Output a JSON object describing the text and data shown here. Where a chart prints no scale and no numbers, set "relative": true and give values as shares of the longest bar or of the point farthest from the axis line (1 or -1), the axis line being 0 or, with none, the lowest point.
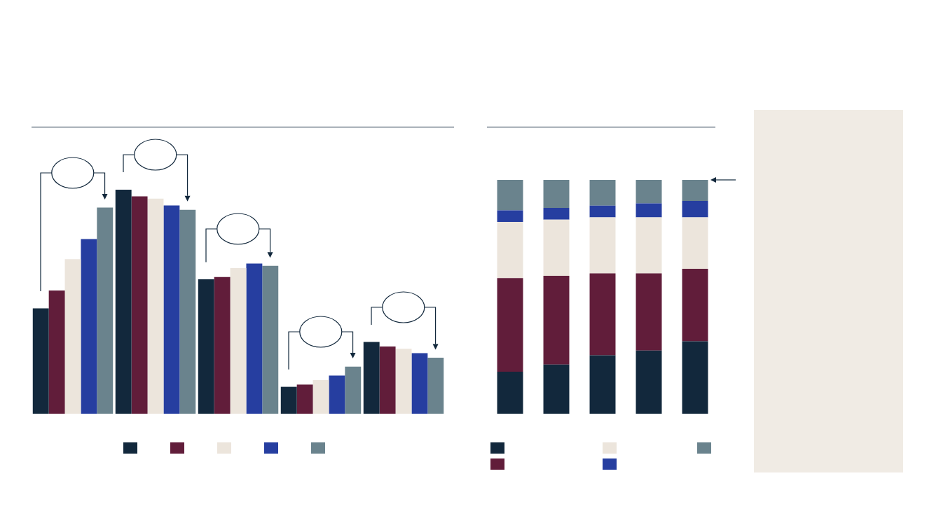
{
  "chart_data": [
    {
      "type": "bar",
      "relative": true,
      "categories": [
        null,
        null,
        null,
        null,
        null
      ],
      "series": [
        {
          "color": "#12283c",
          "values": [
            0.47,
            1,
            0.6,
            0.12,
            0.32
          ]
        },
        {
          "color": "#611d3a",
          "values": [
            0.55,
            0.97,
            0.61,
            0.13,
            0.3
          ]
        },
        {
          "color": "#ece5dc",
          "values": [
            0.69,
            0.96,
            0.65,
            0.15,
            0.29
          ]
        },
        {
          "color": "#263ea0",
          "values": [
            0.78,
            0.93,
            0.67,
            0.17,
            0.27
          ]
        },
        {
          "color": "#6a838d",
          "values": [
            0.92,
            0.91,
            0.66,
            0.21,
            0.25
          ]
        }
      ]
    },
    {
      "type": "bar",
      "relative": true,
      "stacked": true,
      "categories": [
        null,
        null,
        null,
        null,
        null
      ],
      "series": [
        {
          "color": "#12283c",
          "values": [
            0.18,
            0.21,
            0.25,
            0.27,
            0.31
          ]
        },
        {
          "color": "#611d3a",
          "values": [
            0.4,
            0.38,
            0.35,
            0.33,
            0.31
          ]
        },
        {
          "color": "#ece5dc",
          "values": [
            0.24,
            0.24,
            0.24,
            0.24,
            0.22
          ]
        },
        {
          "color": "#263ea0",
          "values": [
            0.05,
            0.05,
            0.05,
            0.06,
            0.07
          ]
        },
        {
          "color": "#6a838d",
          "values": [
            0.13,
            0.12,
            0.11,
            0.1,
            0.09
          ]
        }
      ]
    }
  ]
}
